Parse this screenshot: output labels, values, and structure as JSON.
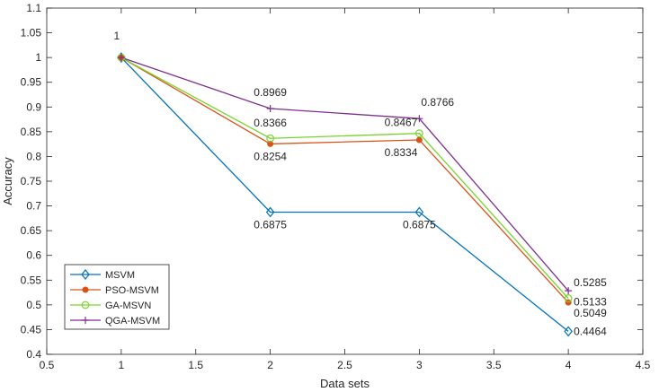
{
  "chart_data": {
    "type": "line",
    "title": "",
    "xlabel": "Data sets",
    "ylabel": "Accuracy",
    "xlim": [
      0.5,
      4.5
    ],
    "ylim": [
      0.4,
      1.1
    ],
    "xticks": [
      "0.5",
      "1",
      "1.5",
      "2",
      "2.5",
      "3",
      "3.5",
      "4",
      "4.5"
    ],
    "yticks": [
      "0.4",
      "0.45",
      "0.5",
      "0.55",
      "0.6",
      "0.65",
      "0.7",
      "0.75",
      "0.8",
      "0.85",
      "0.9",
      "0.95",
      "1",
      "1.05",
      "1.1"
    ],
    "grid": false,
    "legend_position": "bottom-left",
    "x": [
      1,
      2,
      3,
      4
    ],
    "series": [
      {
        "name": "MSVM",
        "values": [
          1,
          0.6875,
          0.6875,
          0.4464
        ],
        "color": "#0072BD",
        "marker": "diamond"
      },
      {
        "name": "PSO-MSVM",
        "values": [
          1,
          0.8254,
          0.8334,
          0.5049
        ],
        "color": "#D95319",
        "marker": "dot"
      },
      {
        "name": "GA-MSVN",
        "values": [
          1,
          0.8366,
          0.8467,
          0.5133
        ],
        "color": "#77D42C",
        "marker": "circle"
      },
      {
        "name": "QGA-MSVM",
        "values": [
          1,
          0.8969,
          0.8766,
          0.5285
        ],
        "color": "#7E2F8E",
        "marker": "plus"
      }
    ],
    "annotations": [
      {
        "text": "1",
        "x": 1,
        "y": 1
      },
      {
        "text": "0.8969",
        "x": 2,
        "y": 0.8969
      },
      {
        "text": "0.8366",
        "x": 2,
        "y": 0.8366
      },
      {
        "text": "0.8254",
        "x": 2,
        "y": 0.8254
      },
      {
        "text": "0.6875",
        "x": 2,
        "y": 0.6875
      },
      {
        "text": "0.8766",
        "x": 3,
        "y": 0.8766
      },
      {
        "text": "0.8467",
        "x": 3,
        "y": 0.8467
      },
      {
        "text": "0.8334",
        "x": 3,
        "y": 0.8334
      },
      {
        "text": "0.6875",
        "x": 3,
        "y": 0.6875
      },
      {
        "text": "0.5285",
        "x": 4,
        "y": 0.5285
      },
      {
        "text": "0.5133",
        "x": 4,
        "y": 0.5133
      },
      {
        "text": "0.5049",
        "x": 4,
        "y": 0.5049
      },
      {
        "text": "0.4464",
        "x": 4,
        "y": 0.4464
      }
    ]
  }
}
